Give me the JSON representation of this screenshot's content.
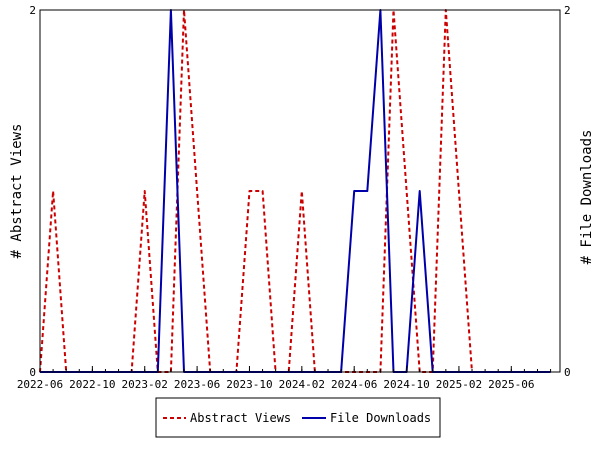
{
  "chart_data": {
    "type": "line",
    "title": "",
    "xlabel": "",
    "ylabel_left": "# Abstract Views",
    "ylabel_right": "# File Downloads",
    "x_start": "2022-06",
    "x_end": "2025-09",
    "x_ticks": [
      "2022-06",
      "2022-10",
      "2023-02",
      "2023-06",
      "2023-10",
      "2024-02",
      "2024-06",
      "2024-10",
      "2025-02",
      "2025-06"
    ],
    "y_left_lim": [
      0,
      2
    ],
    "y_right_lim": [
      0,
      2
    ],
    "y_left_ticks": [
      "0",
      "2"
    ],
    "y_right_ticks": [
      "0",
      "2"
    ],
    "grid": false,
    "legend_position": "bottom",
    "series": [
      {
        "name": "Abstract Views",
        "axis": "left",
        "color": "#cc0000",
        "style": "dashed",
        "points": [
          [
            "2022-06",
            0
          ],
          [
            "2022-07",
            1
          ],
          [
            "2022-08",
            0
          ],
          [
            "2022-09",
            0
          ],
          [
            "2022-10",
            0
          ],
          [
            "2022-11",
            0
          ],
          [
            "2022-12",
            0
          ],
          [
            "2023-01",
            0
          ],
          [
            "2023-02",
            1
          ],
          [
            "2023-03",
            0
          ],
          [
            "2023-04",
            0
          ],
          [
            "2023-05",
            2
          ],
          [
            "2023-06",
            1
          ],
          [
            "2023-07",
            0
          ],
          [
            "2023-08",
            0
          ],
          [
            "2023-09",
            0
          ],
          [
            "2023-10",
            1
          ],
          [
            "2023-11",
            1
          ],
          [
            "2023-12",
            0
          ],
          [
            "2024-01",
            0
          ],
          [
            "2024-02",
            1
          ],
          [
            "2024-03",
            0
          ],
          [
            "2024-04",
            0
          ],
          [
            "2024-05",
            0
          ],
          [
            "2024-06",
            0
          ],
          [
            "2024-07",
            0
          ],
          [
            "2024-08",
            0
          ],
          [
            "2024-09",
            2
          ],
          [
            "2024-10",
            1
          ],
          [
            "2024-11",
            0
          ],
          [
            "2024-12",
            0
          ],
          [
            "2025-01",
            2
          ],
          [
            "2025-02",
            1
          ],
          [
            "2025-03",
            0
          ],
          [
            "2025-04",
            0
          ],
          [
            "2025-05",
            0
          ],
          [
            "2025-06",
            0
          ],
          [
            "2025-07",
            0
          ],
          [
            "2025-08",
            0
          ],
          [
            "2025-09",
            0
          ]
        ]
      },
      {
        "name": "File Downloads",
        "axis": "right",
        "color": "#0000aa",
        "style": "solid",
        "points": [
          [
            "2022-06",
            0
          ],
          [
            "2022-07",
            0
          ],
          [
            "2022-08",
            0
          ],
          [
            "2022-09",
            0
          ],
          [
            "2022-10",
            0
          ],
          [
            "2022-11",
            0
          ],
          [
            "2022-12",
            0
          ],
          [
            "2023-01",
            0
          ],
          [
            "2023-02",
            0
          ],
          [
            "2023-03",
            0
          ],
          [
            "2023-04",
            2
          ],
          [
            "2023-05",
            0
          ],
          [
            "2023-06",
            0
          ],
          [
            "2023-07",
            0
          ],
          [
            "2023-08",
            0
          ],
          [
            "2023-09",
            0
          ],
          [
            "2023-10",
            0
          ],
          [
            "2023-11",
            0
          ],
          [
            "2023-12",
            0
          ],
          [
            "2024-01",
            0
          ],
          [
            "2024-02",
            0
          ],
          [
            "2024-03",
            0
          ],
          [
            "2024-04",
            0
          ],
          [
            "2024-05",
            0
          ],
          [
            "2024-06",
            1
          ],
          [
            "2024-07",
            1
          ],
          [
            "2024-08",
            2
          ],
          [
            "2024-09",
            0
          ],
          [
            "2024-10",
            0
          ],
          [
            "2024-11",
            1
          ],
          [
            "2024-12",
            0
          ],
          [
            "2025-01",
            0
          ],
          [
            "2025-02",
            0
          ],
          [
            "2025-03",
            0
          ],
          [
            "2025-04",
            0
          ],
          [
            "2025-05",
            0
          ],
          [
            "2025-06",
            0
          ],
          [
            "2025-07",
            0
          ],
          [
            "2025-08",
            0
          ],
          [
            "2025-09",
            0
          ]
        ]
      }
    ]
  }
}
